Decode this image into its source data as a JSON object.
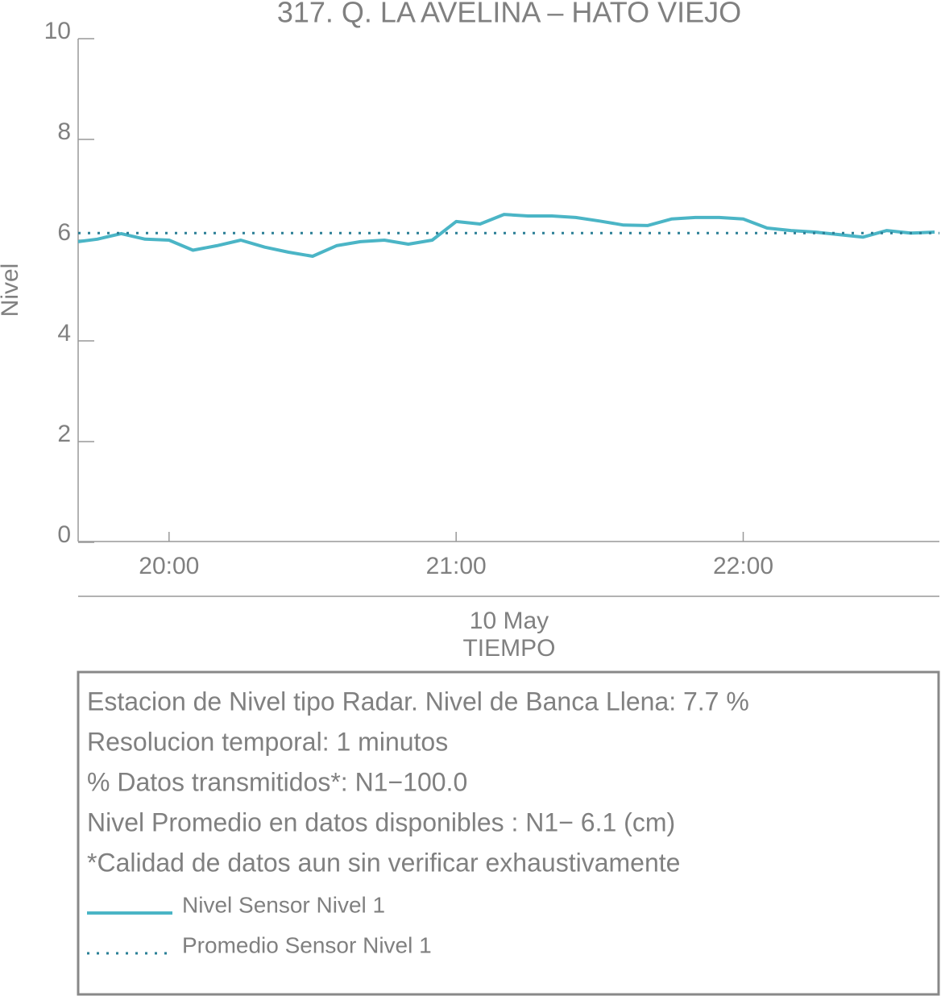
{
  "chart_data": {
    "type": "line",
    "title": "317. Q. LA AVELINA – HATO VIEJO",
    "ylabel": "Nivel",
    "xlabel": "TIEMPO",
    "date": "10 May",
    "ylim": [
      0,
      10
    ],
    "yticks": [
      0,
      2,
      4,
      6,
      8,
      10
    ],
    "xlim": [
      "19:41",
      "22:41"
    ],
    "xticks": [
      "20:00",
      "21:00",
      "22:00"
    ],
    "series": [
      {
        "name": "Nivel Sensor Nivel 1",
        "color": "#4bb5c6",
        "dash": false,
        "x": [
          "19:41",
          "19:45",
          "19:50",
          "19:55",
          "20:00",
          "20:05",
          "20:10",
          "20:15",
          "20:20",
          "20:25",
          "20:30",
          "20:35",
          "20:40",
          "20:45",
          "20:50",
          "20:55",
          "21:00",
          "21:05",
          "21:10",
          "21:15",
          "21:20",
          "21:25",
          "21:30",
          "21:35",
          "21:40",
          "21:45",
          "21:50",
          "21:55",
          "22:00",
          "22:05",
          "22:10",
          "22:15",
          "22:20",
          "22:25",
          "22:30",
          "22:35",
          "22:40"
        ],
        "values": [
          5.97,
          6.02,
          6.13,
          6.02,
          6.0,
          5.8,
          5.89,
          6.0,
          5.86,
          5.76,
          5.68,
          5.89,
          5.97,
          6.0,
          5.92,
          6.0,
          6.37,
          6.32,
          6.51,
          6.48,
          6.48,
          6.45,
          6.38,
          6.3,
          6.29,
          6.42,
          6.45,
          6.45,
          6.42,
          6.24,
          6.19,
          6.16,
          6.11,
          6.06,
          6.19,
          6.14,
          6.16
        ]
      },
      {
        "name": "Promedio Sensor Nivel 1",
        "color": "#2a7f96",
        "dash": true,
        "x": [
          "19:41",
          "22:41"
        ],
        "values": [
          6.14,
          6.14
        ]
      }
    ],
    "notes": [
      "Estacion de Nivel tipo Radar. Nivel de Banca Llena:  7.7 %",
      "Resolucion temporal: 1 minutos",
      "% Datos transmitidos*: N1−100.0",
      "Nivel Promedio en datos disponibles : N1−  6.1 (cm)",
      "*Calidad de datos aun sin verificar exhaustivamente"
    ]
  }
}
